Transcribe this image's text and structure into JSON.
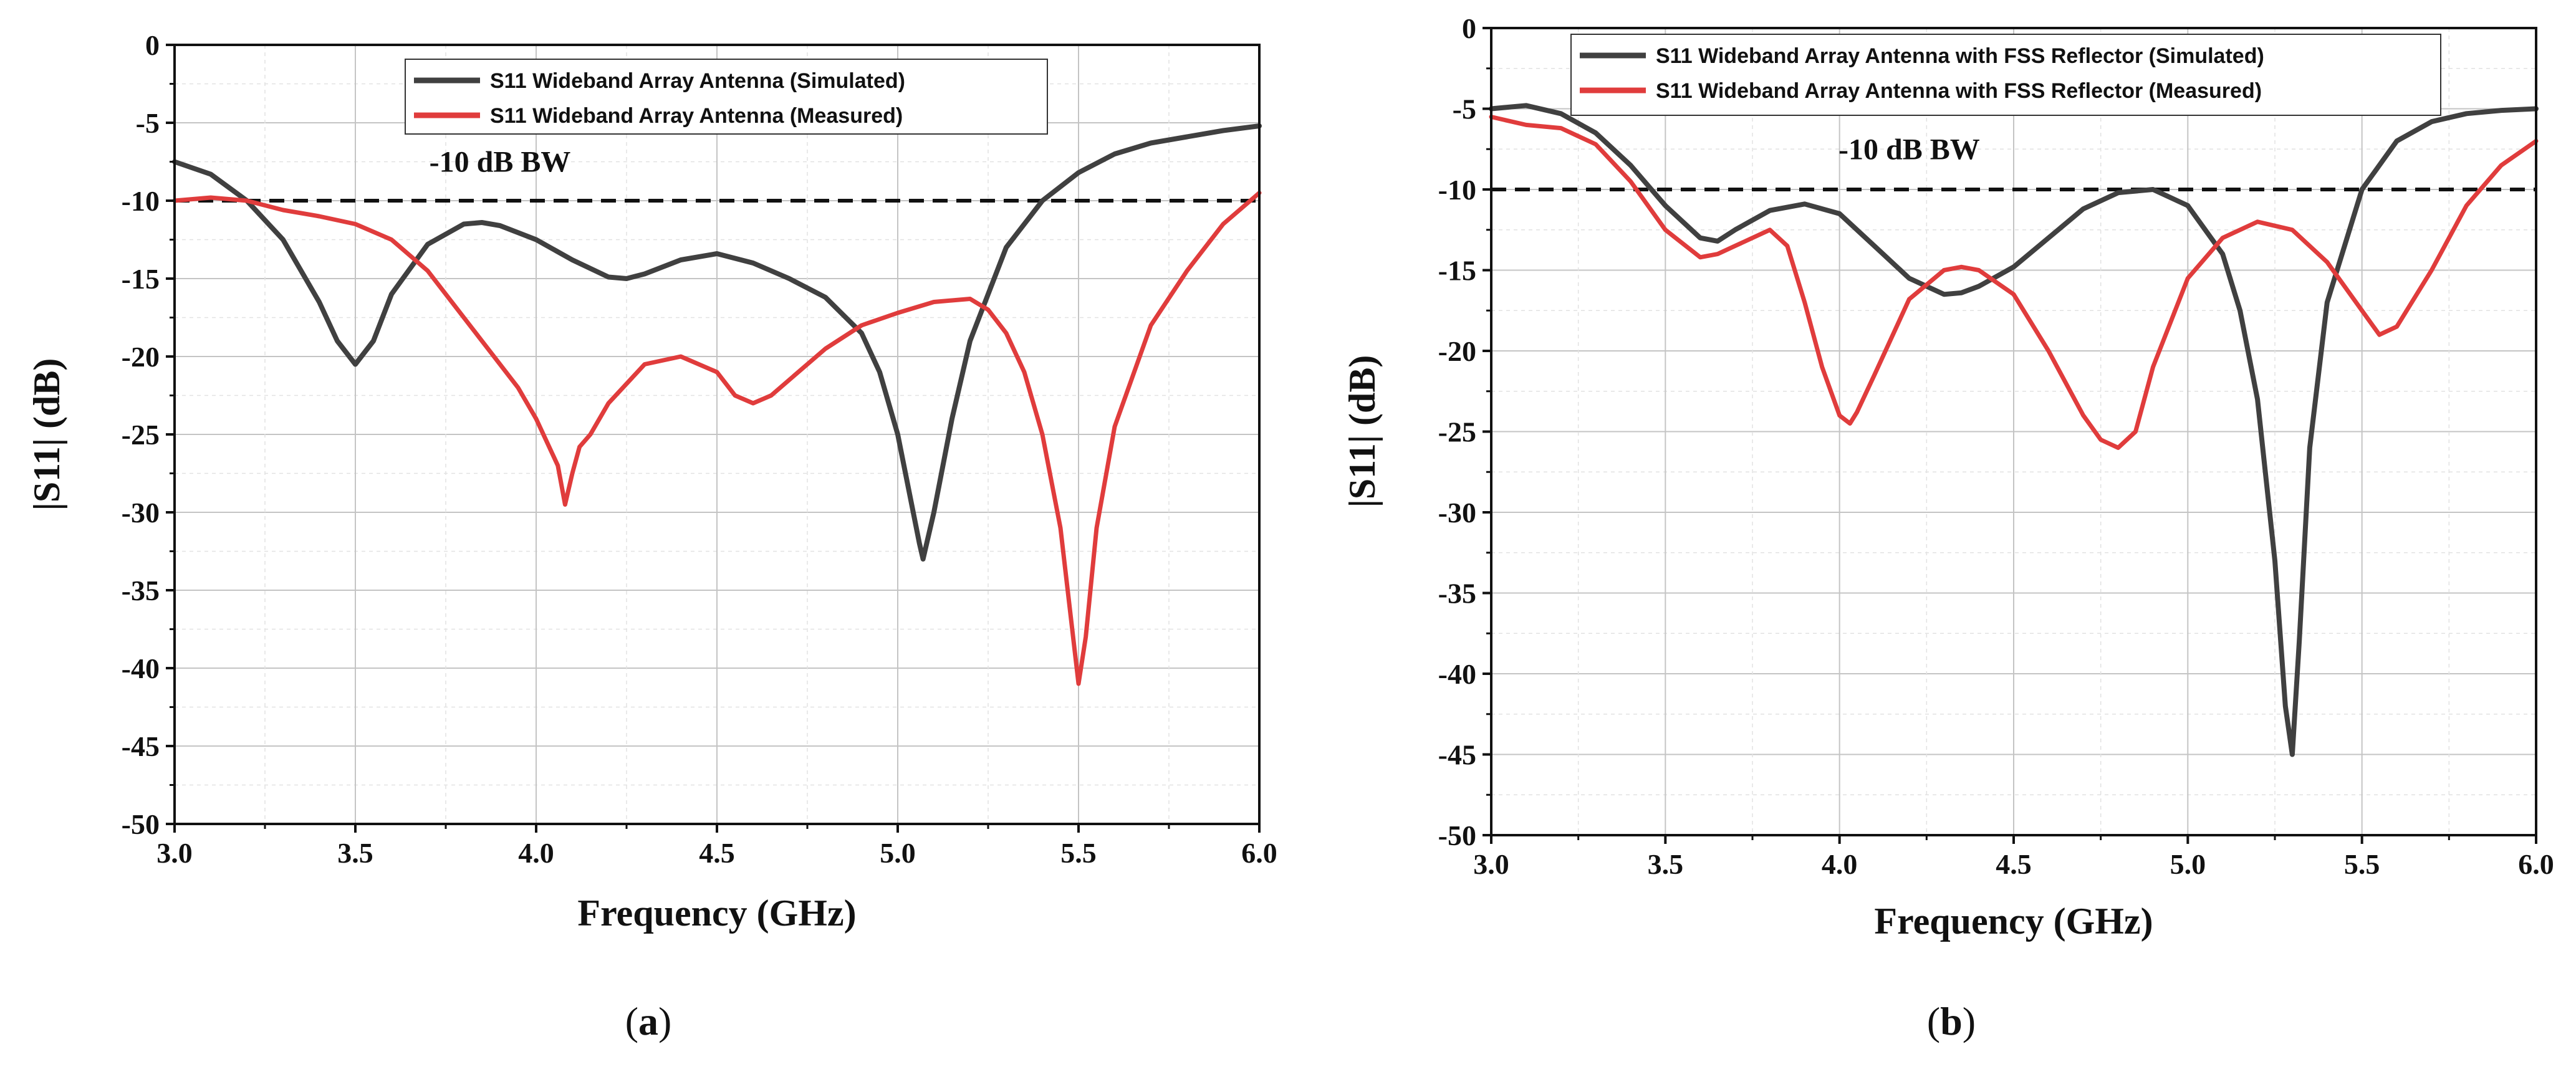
{
  "chart_data": [
    {
      "type": "line",
      "panel_label": "a",
      "title": "",
      "xlabel": "Frequency (GHz)",
      "ylabel": "|S11| (dB)",
      "xlim": [
        3.0,
        6.0
      ],
      "ylim": [
        -50,
        0
      ],
      "xticks": [
        "3.0",
        "3.5",
        "4.0",
        "4.5",
        "5.0",
        "5.5",
        "6.0"
      ],
      "yticks": [
        "0",
        "-5",
        "-10",
        "-15",
        "-20",
        "-25",
        "-30",
        "-35",
        "-40",
        "-45",
        "-50"
      ],
      "grid": true,
      "legend_position": "top-center",
      "annotation": {
        "text": "-10 dB BW",
        "x": 3.9,
        "y": -7.5
      },
      "reference_line": {
        "y": -10,
        "style": "dashed",
        "color": "#111111"
      },
      "series": [
        {
          "name": "S11 Wideband Array Antenna (Simulated)",
          "color": "#404040",
          "x": [
            3.0,
            3.1,
            3.2,
            3.3,
            3.4,
            3.45,
            3.5,
            3.55,
            3.6,
            3.7,
            3.8,
            3.85,
            3.9,
            4.0,
            4.1,
            4.2,
            4.25,
            4.3,
            4.4,
            4.5,
            4.6,
            4.7,
            4.8,
            4.9,
            4.95,
            5.0,
            5.03,
            5.06,
            5.07,
            5.1,
            5.15,
            5.2,
            5.3,
            5.4,
            5.5,
            5.6,
            5.7,
            5.8,
            5.9,
            6.0
          ],
          "y": [
            -7.5,
            -8.3,
            -10.0,
            -12.5,
            -16.5,
            -19.0,
            -20.5,
            -19.0,
            -16.0,
            -12.8,
            -11.5,
            -11.4,
            -11.6,
            -12.5,
            -13.8,
            -14.9,
            -15.0,
            -14.7,
            -13.8,
            -13.4,
            -14.0,
            -15.0,
            -16.2,
            -18.5,
            -21.0,
            -25.0,
            -28.5,
            -32.0,
            -33.0,
            -30.0,
            -24.0,
            -19.0,
            -13.0,
            -10.0,
            -8.2,
            -7.0,
            -6.3,
            -5.9,
            -5.5,
            -5.2
          ]
        },
        {
          "name": "S11 Wideband Array Antenna (Measured)",
          "color": "#e03c3c",
          "x": [
            3.0,
            3.1,
            3.2,
            3.3,
            3.4,
            3.5,
            3.6,
            3.7,
            3.8,
            3.85,
            3.9,
            3.95,
            4.0,
            4.03,
            4.06,
            4.08,
            4.1,
            4.12,
            4.15,
            4.2,
            4.3,
            4.4,
            4.5,
            4.55,
            4.6,
            4.65,
            4.7,
            4.8,
            4.9,
            5.0,
            5.1,
            5.2,
            5.25,
            5.3,
            5.35,
            5.4,
            5.45,
            5.48,
            5.5,
            5.52,
            5.55,
            5.6,
            5.7,
            5.8,
            5.9,
            6.0
          ],
          "y": [
            -10.0,
            -9.8,
            -10.0,
            -10.6,
            -11.0,
            -11.5,
            -12.5,
            -14.5,
            -17.5,
            -19.0,
            -20.5,
            -22.0,
            -24.0,
            -25.5,
            -27.0,
            -29.5,
            -27.5,
            -25.8,
            -25.0,
            -23.0,
            -20.5,
            -20.0,
            -21.0,
            -22.5,
            -23.0,
            -22.5,
            -21.5,
            -19.5,
            -18.0,
            -17.2,
            -16.5,
            -16.3,
            -17.0,
            -18.5,
            -21.0,
            -25.0,
            -31.0,
            -37.0,
            -41.0,
            -38.0,
            -31.0,
            -24.5,
            -18.0,
            -14.5,
            -11.5,
            -9.5
          ]
        }
      ]
    },
    {
      "type": "line",
      "panel_label": "b",
      "title": "",
      "xlabel": "Frequency (GHz)",
      "ylabel": "|S11| (dB)",
      "xlim": [
        3.0,
        6.0
      ],
      "ylim": [
        -50,
        0
      ],
      "xticks": [
        "3.0",
        "3.5",
        "4.0",
        "4.5",
        "5.0",
        "5.5",
        "6.0"
      ],
      "yticks": [
        "0",
        "-5",
        "-10",
        "-15",
        "-20",
        "-25",
        "-30",
        "-35",
        "-40",
        "-45",
        "-50"
      ],
      "grid": true,
      "legend_position": "top-right",
      "annotation": {
        "text": "-10 dB BW",
        "x": 4.2,
        "y": -7.5
      },
      "reference_line": {
        "y": -10,
        "style": "dashed",
        "color": "#111111"
      },
      "series": [
        {
          "name": "S11 Wideband Array Antenna with FSS Reflector (Simulated)",
          "color": "#404040",
          "x": [
            3.0,
            3.1,
            3.2,
            3.3,
            3.4,
            3.5,
            3.6,
            3.65,
            3.7,
            3.8,
            3.9,
            4.0,
            4.1,
            4.2,
            4.3,
            4.35,
            4.4,
            4.5,
            4.6,
            4.7,
            4.8,
            4.9,
            5.0,
            5.1,
            5.15,
            5.2,
            5.25,
            5.28,
            5.3,
            5.32,
            5.35,
            5.4,
            5.5,
            5.6,
            5.7,
            5.8,
            5.9,
            6.0
          ],
          "y": [
            -5.0,
            -4.8,
            -5.3,
            -6.5,
            -8.5,
            -11.0,
            -13.0,
            -13.2,
            -12.5,
            -11.3,
            -10.9,
            -11.5,
            -13.5,
            -15.5,
            -16.5,
            -16.4,
            -16.0,
            -14.8,
            -13.0,
            -11.2,
            -10.2,
            -10.0,
            -11.0,
            -14.0,
            -17.5,
            -23.0,
            -33.0,
            -42.0,
            -45.0,
            -38.0,
            -26.0,
            -17.0,
            -10.0,
            -7.0,
            -5.8,
            -5.3,
            -5.1,
            -5.0
          ]
        },
        {
          "name": "S11 Wideband Array Antenna with FSS Reflector (Measured)",
          "color": "#e03c3c",
          "x": [
            3.0,
            3.1,
            3.2,
            3.3,
            3.4,
            3.5,
            3.6,
            3.65,
            3.7,
            3.8,
            3.85,
            3.9,
            3.95,
            4.0,
            4.03,
            4.05,
            4.1,
            4.2,
            4.3,
            4.35,
            4.4,
            4.5,
            4.6,
            4.7,
            4.75,
            4.8,
            4.85,
            4.9,
            5.0,
            5.1,
            5.2,
            5.3,
            5.4,
            5.5,
            5.55,
            5.6,
            5.7,
            5.8,
            5.9,
            6.0
          ],
          "y": [
            -5.5,
            -6.0,
            -6.2,
            -7.2,
            -9.5,
            -12.5,
            -14.2,
            -14.0,
            -13.5,
            -12.5,
            -13.5,
            -17.0,
            -21.0,
            -24.0,
            -24.5,
            -23.8,
            -21.5,
            -16.8,
            -15.0,
            -14.8,
            -15.0,
            -16.5,
            -20.0,
            -24.0,
            -25.5,
            -26.0,
            -25.0,
            -21.0,
            -15.5,
            -13.0,
            -12.0,
            -12.5,
            -14.5,
            -17.5,
            -19.0,
            -18.5,
            -15.0,
            -11.0,
            -8.5,
            -7.0
          ]
        }
      ]
    }
  ]
}
